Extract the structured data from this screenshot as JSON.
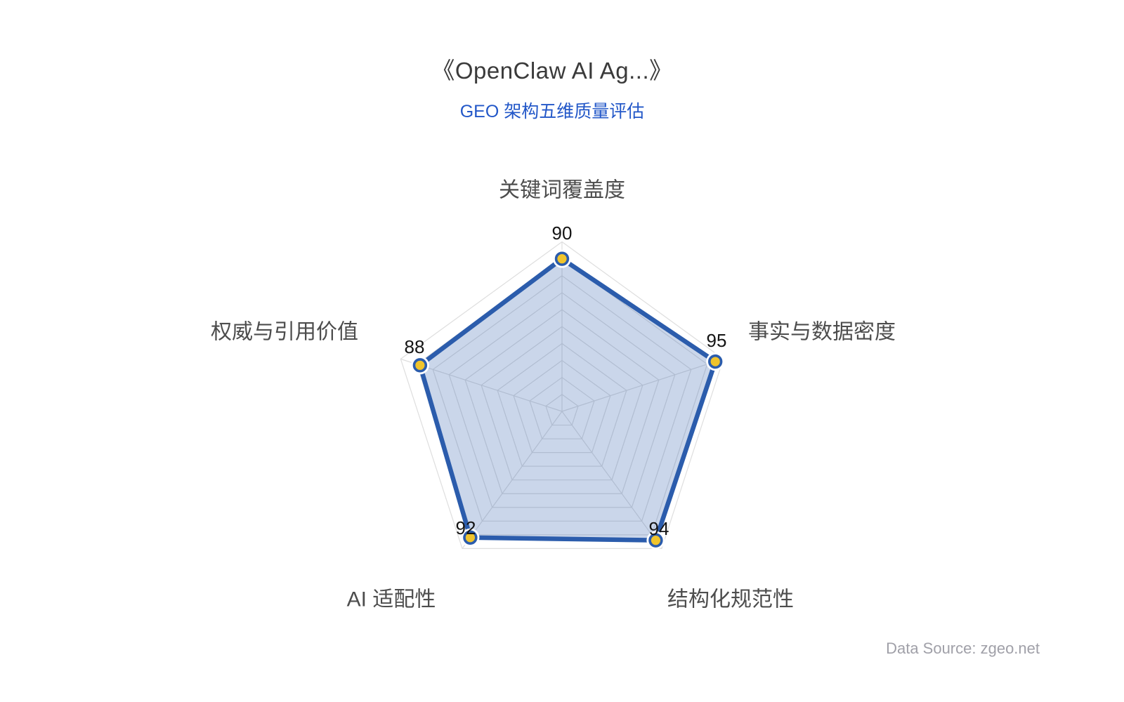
{
  "header": {
    "title": "《OpenClaw AI Ag...》",
    "subtitle": "GEO 架构五维质量评估"
  },
  "footer": {
    "data_source": "Data Source: zgeo.net"
  },
  "chart_data": {
    "type": "radar",
    "title": "《OpenClaw AI Ag...》",
    "subtitle": "GEO 架构五维质量评估",
    "categories": [
      "关键词覆盖度",
      "事实与数据密度",
      "结构化规范性",
      "AI 适配性",
      "权威与引用价值"
    ],
    "series": [
      {
        "name": "GEO 架构五维质量评估",
        "values": [
          90,
          95,
          94,
          92,
          88
        ]
      }
    ],
    "range": [
      0,
      100
    ],
    "rings": 10,
    "grid": "on",
    "legend_position": "none",
    "colors": {
      "line": "#2b5cac",
      "fill_rgba": "rgba(43, 92, 172, 0.25)",
      "marker_fill": "#f0c42c",
      "marker_stroke": "#2b5cac",
      "marker_halo": "#ffffff",
      "grid_line": "#dedede",
      "title": "#3a3a3a",
      "subtitle": "#2257c8",
      "axis_label": "#4d4d4d",
      "value_label": "#141414",
      "source": "#a0a0a8"
    }
  }
}
